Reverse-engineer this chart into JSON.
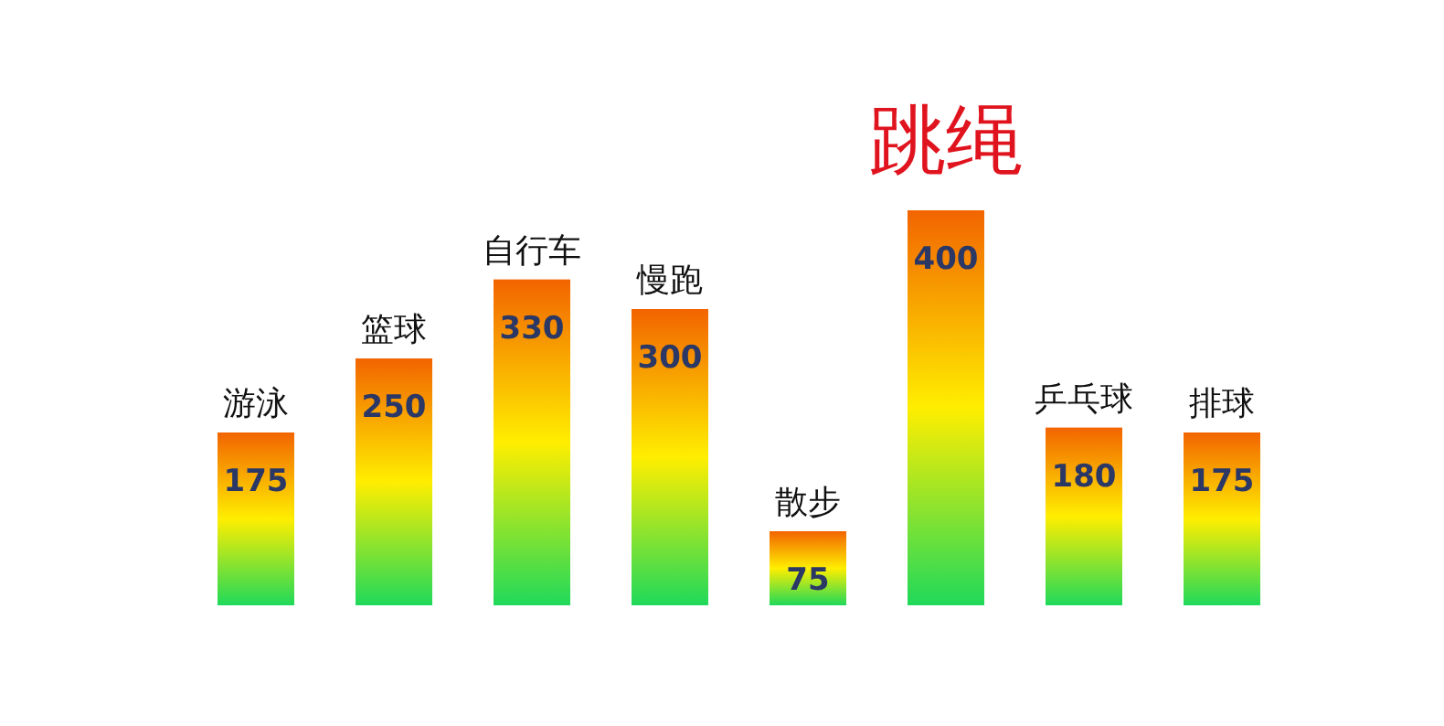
{
  "chart_data": {
    "type": "bar",
    "categories": [
      "游泳",
      "篮球",
      "自行车",
      "慢跑",
      "散步",
      "跳绳",
      "乒乓球",
      "排球"
    ],
    "values": [
      175,
      250,
      330,
      300,
      75,
      400,
      180,
      175
    ],
    "color": "#ffee00",
    "data_labels": true
  }
}
